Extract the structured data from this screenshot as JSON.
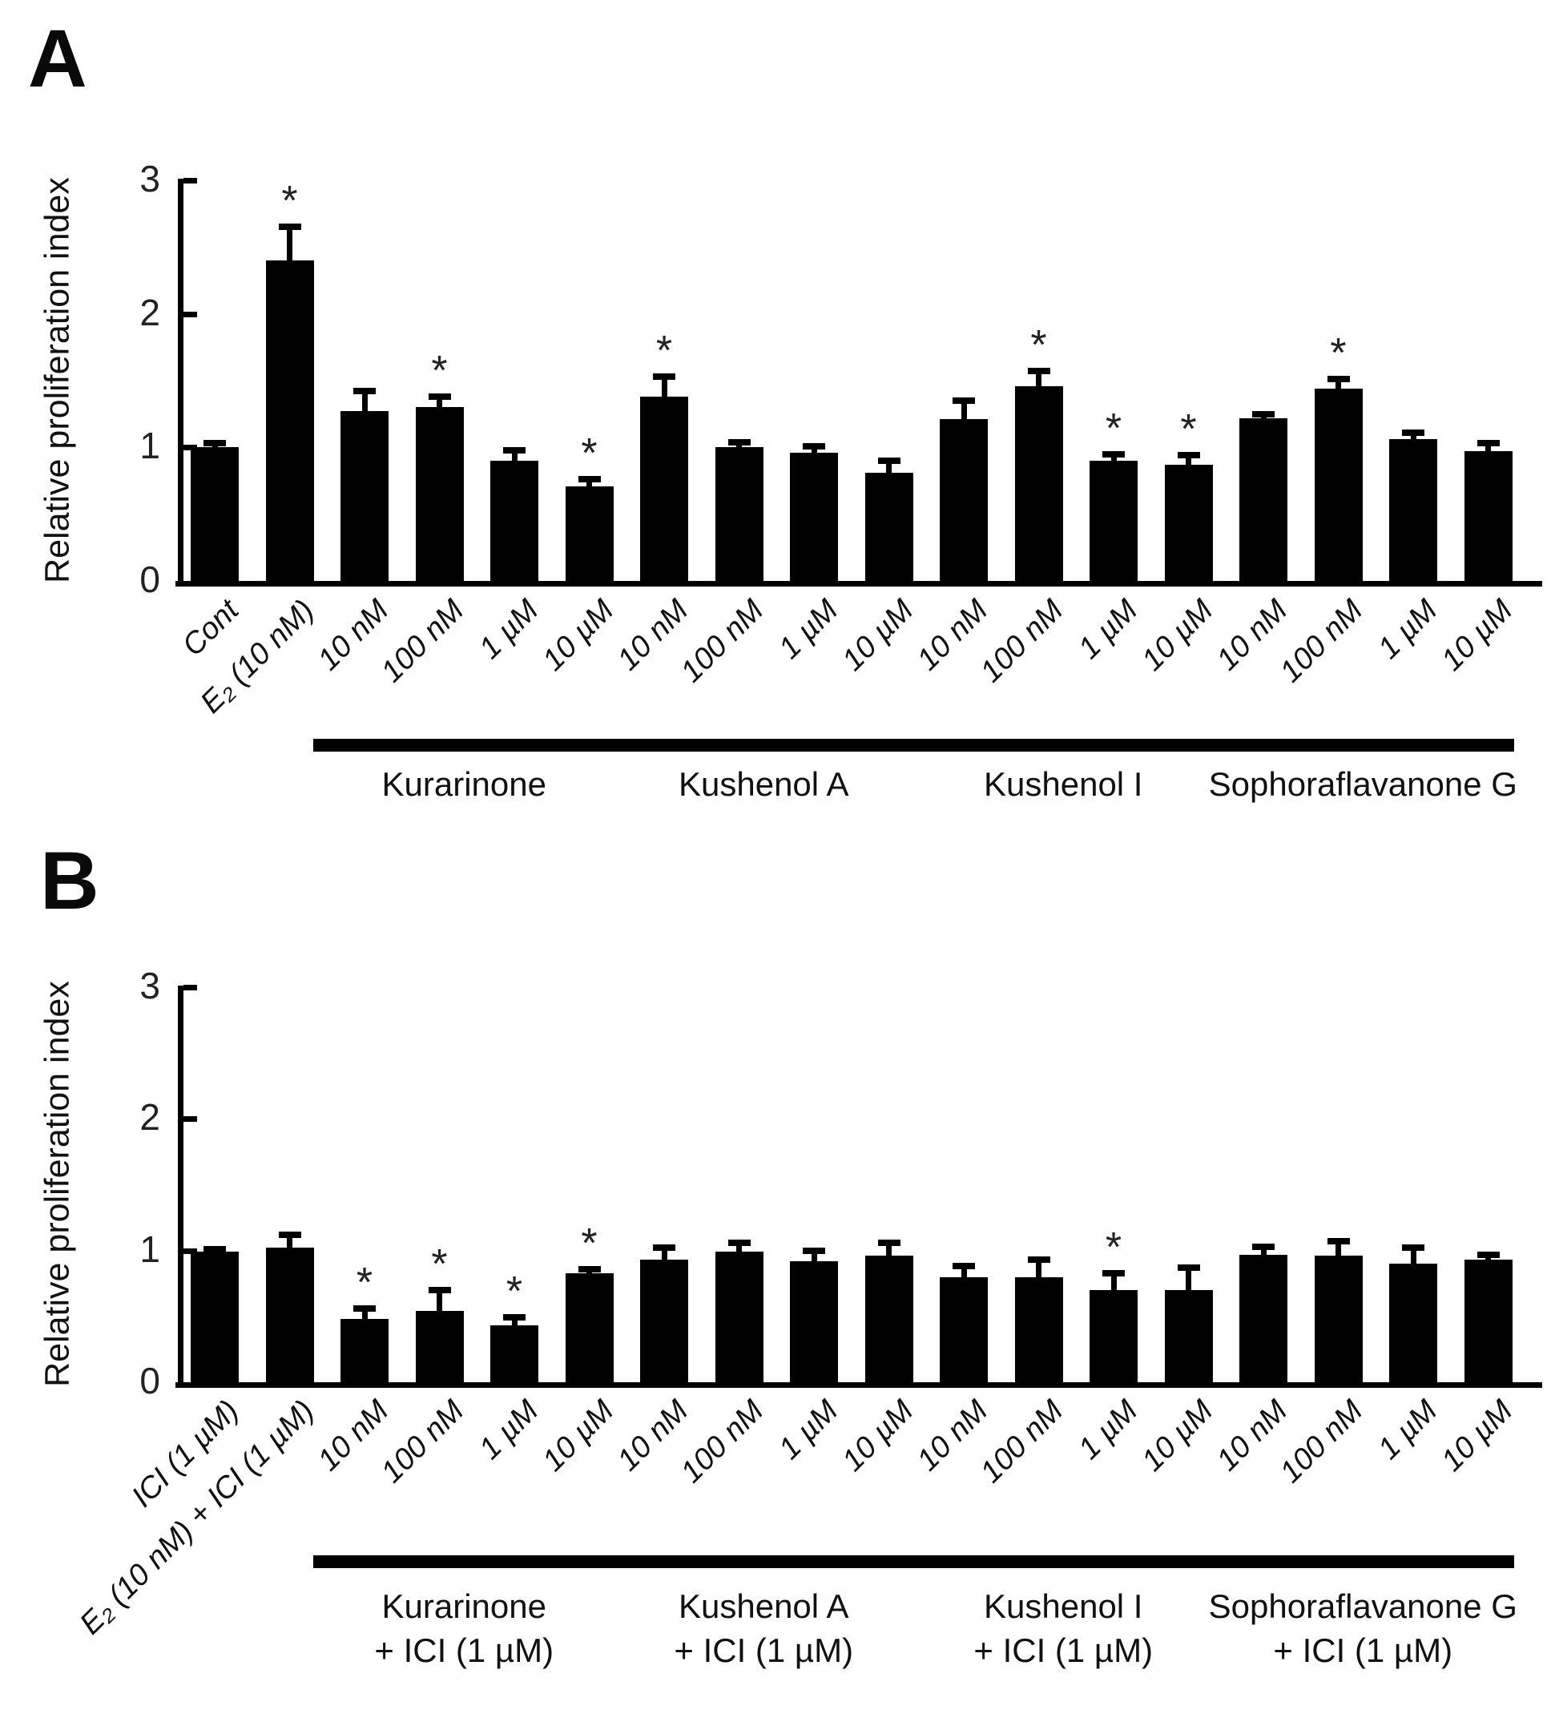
{
  "figure_type": "two-panel bar chart",
  "chart_data": [
    {
      "type": "bar",
      "panel_letter": "A",
      "title": "",
      "xlabel": "",
      "ylabel": "Relative proliferation index",
      "ylim": [
        0,
        3
      ],
      "yticks": [
        0,
        1,
        2,
        3
      ],
      "grid": false,
      "legend": "none",
      "bar_color": "#000000",
      "significance_marker": "*",
      "categories": [
        "Cont",
        "E₂ (10 nM)",
        "10 nM",
        "100 nM",
        "1 µM",
        "10 µM",
        "10 nM",
        "100 nM",
        "1 µM",
        "10 µM",
        "10 nM",
        "100 nM",
        "1 µM",
        "10 µM",
        "10 nM",
        "100 nM",
        "1 µM",
        "10 µM"
      ],
      "values": [
        1.0,
        2.4,
        1.27,
        1.3,
        0.9,
        0.71,
        1.38,
        1.0,
        0.96,
        0.81,
        1.21,
        1.46,
        0.9,
        0.87,
        1.22,
        1.44,
        1.06,
        0.97
      ],
      "errors": [
        0.03,
        0.25,
        0.15,
        0.08,
        0.08,
        0.05,
        0.15,
        0.04,
        0.05,
        0.09,
        0.14,
        0.11,
        0.05,
        0.07,
        0.03,
        0.07,
        0.05,
        0.06
      ],
      "significant": [
        false,
        true,
        false,
        true,
        false,
        true,
        true,
        false,
        false,
        false,
        false,
        true,
        true,
        true,
        false,
        true,
        false,
        false
      ],
      "groups": [
        {
          "label_lines": [
            "Kurarinone"
          ],
          "start_index": 2,
          "end_index": 5
        },
        {
          "label_lines": [
            "Kushenol A"
          ],
          "start_index": 6,
          "end_index": 9
        },
        {
          "label_lines": [
            "Kushenol I"
          ],
          "start_index": 10,
          "end_index": 13
        },
        {
          "label_lines": [
            "Sophoraflavanone G"
          ],
          "start_index": 14,
          "end_index": 17
        }
      ]
    },
    {
      "type": "bar",
      "panel_letter": "B",
      "title": "",
      "xlabel": "",
      "ylabel": "Relative proliferation index",
      "ylim": [
        0,
        3
      ],
      "yticks": [
        0,
        1,
        2,
        3
      ],
      "grid": false,
      "legend": "none",
      "bar_color": "#000000",
      "significance_marker": "*",
      "categories": [
        "ICI (1 µM)",
        "E₂ (10 nM) + ICI (1 µM)",
        "10 nM",
        "100 nM",
        "1 µM",
        "10 µM",
        "10 nM",
        "100 nM",
        "1 µM",
        "10 µM",
        "10 nM",
        "100 nM",
        "1 µM",
        "10 µM",
        "10 nM",
        "100 nM",
        "1 µM",
        "10 µM"
      ],
      "values": [
        0.99,
        1.02,
        0.48,
        0.54,
        0.43,
        0.83,
        0.93,
        0.99,
        0.92,
        0.96,
        0.8,
        0.8,
        0.7,
        0.7,
        0.97,
        0.96,
        0.9,
        0.93
      ],
      "errors": [
        0.02,
        0.1,
        0.08,
        0.16,
        0.06,
        0.03,
        0.09,
        0.07,
        0.08,
        0.1,
        0.08,
        0.13,
        0.13,
        0.17,
        0.06,
        0.11,
        0.12,
        0.04
      ],
      "significant": [
        false,
        false,
        true,
        true,
        true,
        true,
        false,
        false,
        false,
        false,
        false,
        false,
        true,
        false,
        false,
        false,
        false,
        false
      ],
      "groups": [
        {
          "label_lines": [
            "Kurarinone",
            "+ ICI (1 µM)"
          ],
          "start_index": 2,
          "end_index": 5
        },
        {
          "label_lines": [
            "Kushenol A",
            "+ ICI (1 µM)"
          ],
          "start_index": 6,
          "end_index": 9
        },
        {
          "label_lines": [
            "Kushenol I",
            "+ ICI (1 µM)"
          ],
          "start_index": 10,
          "end_index": 13
        },
        {
          "label_lines": [
            "Sophoraflavanone G",
            "+ ICI (1 µM)"
          ],
          "start_index": 14,
          "end_index": 17
        }
      ]
    }
  ]
}
